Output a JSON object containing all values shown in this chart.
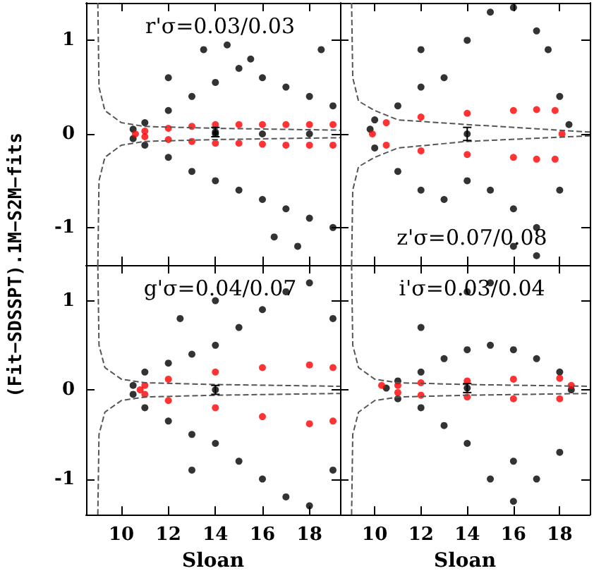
{
  "chart_data": [
    {
      "type": "scatter",
      "annotations": [
        "r'σ=0.03/0.03"
      ],
      "ylabel": "(Fit−SDSSPT).1M−S2M−fits",
      "xlim": [
        8.5,
        19.3
      ],
      "ylim": [
        -1.4,
        1.4
      ],
      "xticks": [
        10,
        12,
        14,
        16,
        18
      ],
      "yticks": [
        -1,
        0,
        1
      ],
      "tick_labels": "y",
      "marker": "circle",
      "series": [
        {
          "color": "#000000",
          "x": [
            10.5,
            10.5,
            11,
            11,
            12,
            12,
            13,
            13,
            14,
            14,
            15,
            15,
            16,
            16,
            17,
            17,
            18,
            18,
            19,
            19,
            13.5,
            14.5,
            15.5,
            17.5,
            16.5,
            12,
            18.5,
            14,
            16,
            18
          ],
          "values": [
            0.05,
            -0.05,
            0.12,
            -0.12,
            0.25,
            -0.25,
            0.4,
            -0.4,
            0.55,
            -0.5,
            0.7,
            -0.6,
            0.6,
            -0.7,
            0.5,
            -0.8,
            0.4,
            -0.9,
            0.3,
            -1.0,
            0.9,
            0.95,
            0.8,
            -1.2,
            -1.1,
            0.6,
            0.9,
            0,
            0,
            0
          ]
        },
        {
          "color": "#ff0000",
          "x": [
            10.6,
            11,
            11,
            12,
            12,
            13,
            13,
            14,
            14,
            15,
            15,
            16,
            16,
            17,
            17,
            18,
            18,
            19,
            19
          ],
          "values": [
            0,
            0.03,
            -0.03,
            0.06,
            -0.06,
            0.08,
            -0.08,
            0.1,
            -0.1,
            0.1,
            -0.1,
            0.1,
            -0.11,
            0.1,
            -0.12,
            0.1,
            -0.12,
            0.1,
            -0.12
          ]
        },
        {
          "type": "line",
          "line_style": "dashed",
          "marker": "none",
          "color": "#555555",
          "x": [
            9.0,
            9.05,
            9.3,
            10,
            11,
            14,
            19.3
          ],
          "values": [
            1.4,
            0.5,
            0.25,
            0.12,
            0.08,
            0.06,
            0.04
          ]
        },
        {
          "type": "line",
          "line_style": "dashed",
          "marker": "none",
          "color": "#555555",
          "x": [
            9.0,
            9.05,
            9.3,
            10,
            11,
            14,
            19.3
          ],
          "values": [
            -1.4,
            -0.5,
            -0.25,
            -0.12,
            -0.08,
            -0.06,
            -0.04
          ]
        },
        {
          "color": "#000000",
          "x": [
            14
          ],
          "values": [
            0.02
          ],
          "errors": [
            0.05
          ]
        }
      ]
    },
    {
      "type": "scatter",
      "annotations": [
        "z'σ=0.07/0.08"
      ],
      "xlim": [
        8.5,
        19.3
      ],
      "ylim": [
        -1.4,
        1.4
      ],
      "xticks": [
        10,
        12,
        14,
        16,
        18
      ],
      "yticks": [
        -1,
        0,
        1
      ],
      "tick_labels": false,
      "marker": "circle",
      "series": [
        {
          "color": "#000000",
          "x": [
            9.8,
            10,
            10,
            11,
            11,
            12,
            12,
            13,
            13,
            14,
            14,
            15,
            15,
            16,
            16,
            17,
            17,
            17.5,
            18,
            18,
            18.4,
            17,
            16,
            12
          ],
          "values": [
            0.05,
            0.15,
            -0.15,
            0.3,
            -0.4,
            0.5,
            -0.6,
            0.6,
            -0.7,
            1.0,
            -0.5,
            1.3,
            -0.6,
            1.35,
            -0.8,
            1.1,
            -1.0,
            0.9,
            0.4,
            -0.6,
            0.1,
            -1.3,
            -1.2,
            0.9
          ]
        },
        {
          "color": "#ff0000",
          "x": [
            9.9,
            10.5,
            10.5,
            12,
            12,
            14,
            14,
            16,
            16,
            17,
            17,
            17.8,
            17.8,
            18.1
          ],
          "values": [
            0,
            0.12,
            -0.12,
            0.18,
            -0.18,
            0.22,
            -0.22,
            0.25,
            -0.25,
            0.26,
            -0.27,
            0.25,
            -0.27,
            0
          ]
        },
        {
          "type": "line",
          "line_style": "dashed",
          "marker": "none",
          "color": "#555555",
          "x": [
            9.0,
            9.05,
            9.3,
            10,
            11,
            14,
            19.3
          ],
          "values": [
            1.4,
            0.6,
            0.35,
            0.25,
            0.15,
            0.1,
            0.02
          ]
        },
        {
          "type": "line",
          "line_style": "dashed",
          "marker": "none",
          "color": "#555555",
          "x": [
            9.0,
            9.05,
            9.3,
            10,
            11,
            14,
            19.3
          ],
          "values": [
            -1.4,
            -0.6,
            -0.35,
            -0.25,
            -0.15,
            -0.08,
            -0.02
          ]
        },
        {
          "color": "#000000",
          "x": [
            14
          ],
          "values": [
            0
          ],
          "errors": [
            0.07
          ]
        }
      ]
    },
    {
      "type": "scatter",
      "annotations": [
        "g'σ=0.04/0.07"
      ],
      "xlabel": "Sloan",
      "xlim": [
        8.5,
        19.3
      ],
      "ylim": [
        -1.4,
        1.4
      ],
      "xticks": [
        10,
        12,
        14,
        16,
        18
      ],
      "yticks": [
        -1,
        0,
        1
      ],
      "marker": "circle",
      "series": [
        {
          "color": "#000000",
          "x": [
            10.5,
            10.5,
            11,
            11,
            12,
            12,
            13,
            13,
            14,
            14,
            15,
            15,
            16,
            16,
            17,
            17,
            18,
            18,
            19,
            19,
            14,
            12.5,
            13
          ],
          "values": [
            0.05,
            -0.05,
            0.2,
            -0.2,
            0.3,
            -0.35,
            0.4,
            -0.5,
            0.5,
            -0.6,
            0.7,
            -0.8,
            0.9,
            -1.0,
            1.1,
            -1.2,
            1.2,
            -1.3,
            0.8,
            -0.9,
            1.0,
            0.8,
            -0.9
          ]
        },
        {
          "color": "#ff0000",
          "x": [
            10.8,
            11,
            11,
            12,
            12,
            14,
            14,
            16,
            16,
            18,
            18,
            19,
            19
          ],
          "values": [
            0,
            0.05,
            -0.05,
            0.12,
            -0.12,
            0.2,
            -0.2,
            0.25,
            -0.3,
            0.28,
            -0.38,
            0.25,
            -0.35
          ]
        },
        {
          "type": "line",
          "line_style": "dashed",
          "marker": "none",
          "color": "#555555",
          "x": [
            9.0,
            9.05,
            9.3,
            10,
            11,
            14,
            19.3
          ],
          "values": [
            1.4,
            0.5,
            0.25,
            0.12,
            0.08,
            0.06,
            0.04
          ]
        },
        {
          "type": "line",
          "line_style": "dashed",
          "marker": "none",
          "color": "#555555",
          "x": [
            9.0,
            9.05,
            9.3,
            10,
            11,
            14,
            19.3
          ],
          "values": [
            -1.4,
            -0.5,
            -0.25,
            -0.12,
            -0.08,
            -0.06,
            -0.04
          ]
        },
        {
          "color": "#000000",
          "x": [
            14
          ],
          "values": [
            0
          ],
          "errors": [
            0.05
          ]
        }
      ]
    },
    {
      "type": "scatter",
      "annotations": [
        "i'σ=0.03/0.04"
      ],
      "xlabel": "Sloan",
      "xlim": [
        8.5,
        19.3
      ],
      "ylim": [
        -1.4,
        1.4
      ],
      "xticks": [
        10,
        12,
        14,
        16,
        18
      ],
      "yticks": [
        -1,
        0,
        1
      ],
      "tick_labels": "x",
      "marker": "circle",
      "series": [
        {
          "color": "#000000",
          "x": [
            10.5,
            11,
            11,
            12,
            12,
            13,
            13,
            14,
            14,
            15,
            15,
            16,
            16,
            17,
            17,
            18,
            18,
            18.5,
            14,
            15,
            16,
            12
          ],
          "values": [
            0.02,
            0.1,
            -0.1,
            0.2,
            -0.2,
            0.35,
            -0.4,
            0.45,
            -0.6,
            0.5,
            -1.0,
            0.45,
            -0.8,
            0.35,
            -1.0,
            0.2,
            -0.7,
            0,
            1.1,
            1.2,
            -1.25,
            0.7
          ]
        },
        {
          "color": "#ff0000",
          "x": [
            10.3,
            11,
            11,
            12,
            12,
            14,
            14,
            16,
            16,
            18,
            18,
            18.5
          ],
          "values": [
            0.05,
            0.05,
            -0.03,
            0.08,
            -0.06,
            0.1,
            -0.08,
            0.12,
            -0.1,
            0.13,
            -0.1,
            0.05
          ]
        },
        {
          "type": "line",
          "line_style": "dashed",
          "marker": "none",
          "color": "#555555",
          "x": [
            9.0,
            9.05,
            9.3,
            10,
            11,
            14,
            19.3
          ],
          "values": [
            1.4,
            0.5,
            0.25,
            0.12,
            0.08,
            0.06,
            0.04
          ]
        },
        {
          "type": "line",
          "line_style": "dashed",
          "marker": "none",
          "color": "#555555",
          "x": [
            9.0,
            9.05,
            9.3,
            10,
            11,
            14,
            19.3
          ],
          "values": [
            -1.4,
            -0.5,
            -0.25,
            -0.12,
            -0.08,
            -0.06,
            -0.04
          ]
        },
        {
          "color": "#000000",
          "x": [
            14
          ],
          "values": [
            0.02
          ],
          "errors": [
            0.05
          ]
        }
      ]
    }
  ]
}
